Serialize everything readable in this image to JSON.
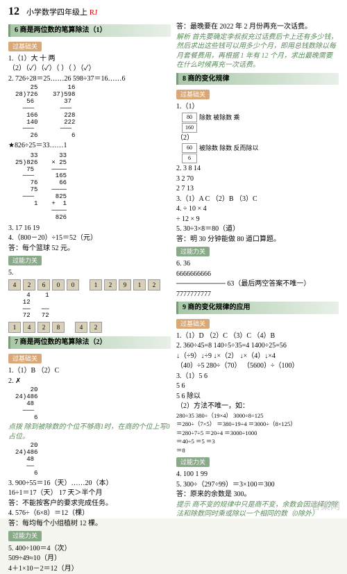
{
  "header": {
    "pagenum": "12",
    "title": "小学数学四年级",
    "grade": "上",
    "ver": "RJ"
  },
  "left": {
    "sec6": {
      "title": "6 商是两位数的笔算除法（1）",
      "tab1": "过基础关",
      "l1": "1.（1）大  十  两",
      "l2": "（2）（✓）（✓）（  ）（  ）（✓）",
      "l3": "2. 726÷28＝25……26   598÷37＝16……6",
      "div1": "    25        16\n28)726    37)598\n   56        37\n  ───       ───\n   166       228\n   140       222\n  ───       ───\n    26         6",
      "l4": "★826÷25＝33……1",
      "div2": "    33\n25)826\n   75\n  ───\n    76\n    75\n  ───\n     1",
      "div2b": "  33\n× 25\n────\n 165\n  66\n────\n 825\n+  1\n────\n 826",
      "l5": "3. 17  16  19",
      "l6": "4.（800－20）÷15＝52（元）",
      "l7": "   答：每个篮球 52 元。",
      "tab2": "过能力关",
      "l8": "5.",
      "boxes1": [
        "4",
        "2",
        "6",
        "0",
        "0"
      ],
      "boxes2": [
        "1",
        "2",
        "9",
        "1",
        "2"
      ],
      "div3": "   4    1\n  12\n  ──   ──\n  72   72",
      "boxes3": [
        "1",
        "4",
        "2",
        "8"
      ],
      "boxes4": [
        "4",
        "2"
      ]
    },
    "sec7": {
      "title": "7 商是两位数的笔算除法（2）",
      "tab1": "过基础关",
      "l1": "1.（1）B  （2）C",
      "l2": "2.  ✗",
      "div1": "    20\n24)486\n   48\n  ───\n     6",
      "note1": "点拨  除到被除数的个位不够商1时，在商的个位上写0占位。",
      "div2": "    20\n24)486\n   48\n   ──\n     6",
      "l3": "3. 900÷55＝16（天）……20（本）",
      "l4": "   16÷1＝17（天） 17 天＞半个月",
      "l5": "   答：不能按客户的要求完成任务。",
      "l6": "4. 576÷（6×8）＝12（棵）",
      "l7": "   答：每均每个小组植树 12 棵。",
      "tab2": "过能力关",
      "l8": "5. 400÷100＝4（次）",
      "l9": "   509÷49≈10（月）",
      "l10": "   4＋1×10－2＝12（月）"
    }
  },
  "right": {
    "top": {
      "l1": "答：最晚要在 2022 年 2 月份再充一次话费。",
      "l2": "解析  首先要确定李叔叔充过话费后卡上还有多少钱，然后求出这些钱可以用多少个月，即用总钱数除以每月套餐费用，再根据 1 年有 12 个月，求出最晚需要在什么时候再充一次话费。"
    },
    "sec8": {
      "title": "8 商的变化规律",
      "tab1": "过基础关",
      "l1": "1.（1）",
      "row1a": "80",
      "row1a_txt": "除数  被除数  乘",
      "row1b": "160",
      "l2": "（2）",
      "row2a": "60",
      "row2a_txt": "被除数  除数  反而除以",
      "row2b": "6",
      "l3": "2. 3  8  14",
      "l4": "   3  2  70",
      "l5": "   2  7  13",
      "l6": "3.（1）A  C  （2）B  （3）C",
      "l7": "4. ÷ 10  × 4",
      "l8": "   ÷ 12  × 9",
      "l9": "5. 30÷3×8＝80（道）",
      "l10": "   答：明 30 分钟能做 80 道口算题。",
      "tab2": "过能力关",
      "l11": "6. 36",
      "l12": "   6666666666",
      "l13": "   ────────── 63（最后两空答案不唯一）",
      "l14": "   7777777777",
      "side": "详见\n题型"
    },
    "sec9": {
      "title": "9 商的变化规律的应用",
      "tab1": "过基础关",
      "l1": "1.（1）D  （2）C  （3）C  （4）B",
      "l2": "2. 360÷45=8   140÷5÷35=4   1400÷25=56",
      "l3": "   ↓（÷9）↓÷9   ↓×（2）   ↓×（4）↓×4",
      "l4": "   （40）÷5   280÷（70）  （5600）÷（100）",
      "l5": "3.（1）5  6",
      "l6": "      5  6",
      "l7": "      5  6   除以",
      "l8": "   （2）方法不唯一，如：",
      "l9": "      280÷35        380÷（19×4）   3000÷8÷125",
      "l10": "      ＝280÷（7×5）  ＝380÷19÷4   ＝3000÷（8×125）",
      "l11": "      ＝280÷7÷5    ＝20÷4        ＝3000÷1000",
      "l12": "      ＝40÷5        ＝5            ＝3",
      "l13": "      ＝8",
      "tab2": "过能力关",
      "l14": "4. 100  1  99",
      "l15": "5. 300÷（297÷99）＝3×100＝300",
      "l16": "   答：原来的余数是 300。",
      "note1": "提示  商不变的规律中只是商不变，余数会因选择的除法和除数同时乘或除以一个相同的数（0除外）"
    }
  },
  "watermark": "答案网"
}
